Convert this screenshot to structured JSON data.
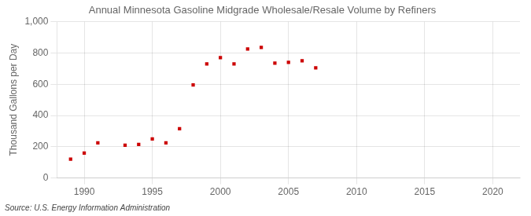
{
  "chart_data": {
    "type": "scatter",
    "title": "Annual Minnesota Gasoline Midgrade Wholesale/Resale Volume by Refiners",
    "ylabel": "Thousand Gallons per Day",
    "annotations": [
      "Source: U.S. Energy Information Administration"
    ],
    "x": [
      1989,
      1990,
      1991,
      1993,
      1994,
      1995,
      1996,
      1997,
      1998,
      1999,
      2000,
      2001,
      2002,
      2003,
      2004,
      2005,
      2006,
      2007
    ],
    "values": [
      120,
      160,
      225,
      210,
      215,
      250,
      225,
      315,
      595,
      730,
      770,
      730,
      825,
      835,
      735,
      740,
      750,
      705
    ],
    "color": "#cc0000",
    "marker": "square",
    "xlim": [
      1988,
      2022
    ],
    "ylim": [
      0,
      1000
    ],
    "xticks": [
      1990,
      1995,
      2000,
      2005,
      2010,
      2015,
      2020
    ],
    "yticks": [
      0,
      200,
      400,
      600,
      800,
      {
        "value": 1000,
        "label": "1,000"
      }
    ],
    "grid": true
  }
}
